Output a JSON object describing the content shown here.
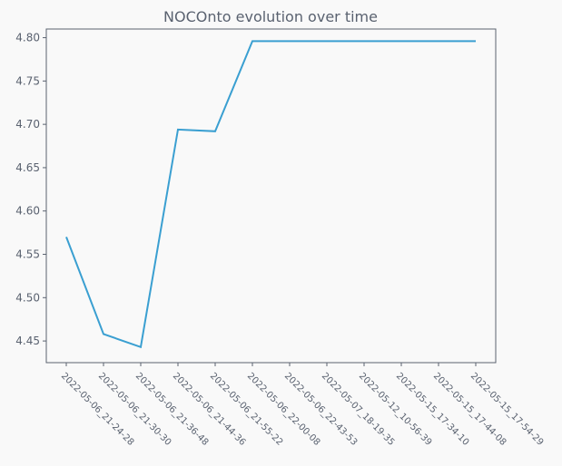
{
  "chart_data": {
    "type": "line",
    "title": "NOCOnto evolution over time",
    "xlabel": "",
    "ylabel": "",
    "categories": [
      "2022-05-06_21-24-28",
      "2022-05-06_21-30-30",
      "2022-05-06_21-36-48",
      "2022-05-06_21-44-36",
      "2022-05-06_21-55-22",
      "2022-05-06_22-00-08",
      "2022-05-06_22-43-53",
      "2022-05-07_18-19-35",
      "2022-05-12_10-56-39",
      "2022-05-15_17-34-10",
      "2022-05-15_17-44-08",
      "2022-05-15_17-54-29"
    ],
    "values": [
      4.57,
      4.458,
      4.443,
      4.694,
      4.692,
      4.796,
      4.796,
      4.796,
      4.796,
      4.796,
      4.796,
      4.796
    ],
    "ylim": [
      4.425,
      4.81
    ],
    "yticks": [
      "4.45",
      "4.50",
      "4.55",
      "4.60",
      "4.65",
      "4.70",
      "4.75",
      "4.80"
    ],
    "grid": false,
    "line_color": "#3a9fd1",
    "axis_color": "#5a6270",
    "plot_background": "#f9f9f9"
  }
}
